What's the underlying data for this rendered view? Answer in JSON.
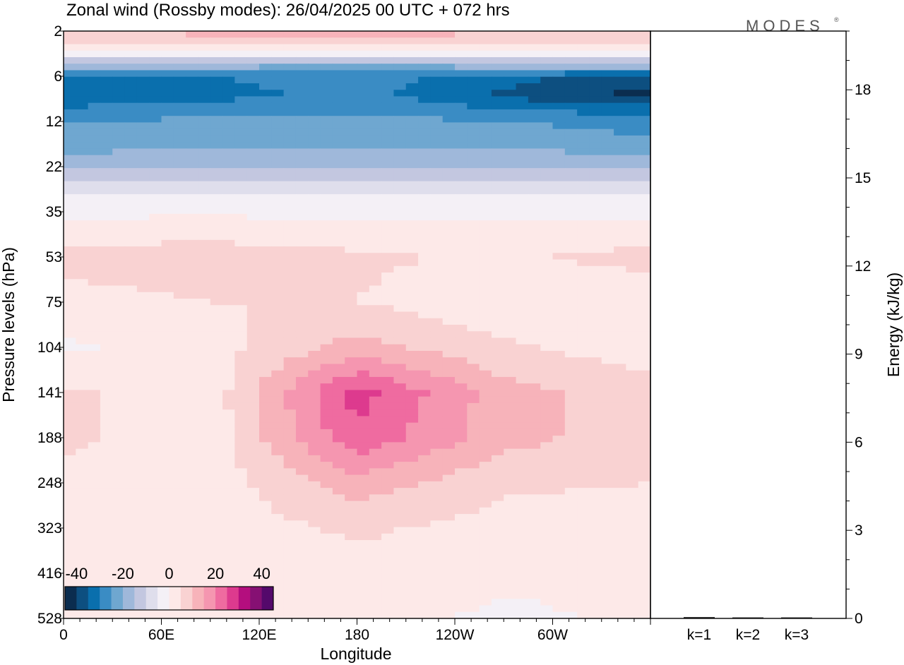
{
  "title": "Zonal wind (Rossby modes):  26/04/2025  00 UTC  + 072 hrs",
  "brand": {
    "name": "MODES",
    "mark": "®"
  },
  "chart_data": [
    {
      "type": "heatmap",
      "title": "Zonal wind (Rossby modes):  26/04/2025  00 UTC  + 072 hrs",
      "xlabel": "Longitude",
      "ylabel": "Pressure levels (hPa)",
      "x_ticks": [
        "0",
        "60E",
        "120E",
        "180",
        "120W",
        "60W"
      ],
      "x_tick_degrees": [
        0,
        60,
        120,
        180,
        240,
        300
      ],
      "xlim": [
        0,
        360
      ],
      "y_ticks": [
        2,
        6,
        12,
        22,
        35,
        53,
        75,
        104,
        141,
        188,
        248,
        323,
        416,
        528
      ],
      "y_scale": "model levels (top = 2 hPa, bottom = 528 hPa)",
      "colorbar": {
        "tick_labels": [
          "-40",
          "-20",
          "0",
          "20",
          "40"
        ],
        "tick_values": [
          -40,
          -20,
          0,
          20,
          40
        ],
        "range": [
          -45,
          45
        ],
        "levels": [
          -45,
          -40,
          -35,
          -30,
          -25,
          -20,
          -15,
          -10,
          -5,
          0,
          5,
          10,
          15,
          20,
          25,
          30,
          35,
          40,
          45
        ],
        "colors": [
          "#0b2d4f",
          "#0d4f80",
          "#0a6fad",
          "#3a8cc4",
          "#6fa7d0",
          "#9fb8da",
          "#c3c7e0",
          "#dfdeec",
          "#f4f0f6",
          "#fde9e8",
          "#f9d2d2",
          "#f7b3ba",
          "#f596b0",
          "#ef6ba0",
          "#dd3a8e",
          "#b40e7e",
          "#861073",
          "#54096b"
        ]
      },
      "bands": [
        {
          "level": 2,
          "values": [
            10,
            12,
            15,
            10,
            8
          ]
        },
        {
          "level": 3,
          "values": [
            3,
            3,
            3,
            3,
            3
          ]
        },
        {
          "level": 4,
          "values": [
            -9,
            -10,
            -11,
            -10,
            -9
          ]
        },
        {
          "level": 5,
          "values": [
            -21,
            -22,
            -23,
            -22,
            -21
          ]
        },
        {
          "level": 6,
          "values": [
            -34,
            -30,
            -27,
            -33,
            -38
          ]
        },
        {
          "level": 8,
          "values": [
            -35,
            -32,
            -28,
            -36,
            -42
          ]
        },
        {
          "level": 10,
          "values": [
            -29,
            -27,
            -26,
            -30,
            -33
          ]
        },
        {
          "level": 12,
          "values": [
            -25,
            -24,
            -23,
            -25,
            -27
          ]
        },
        {
          "level": 16,
          "values": [
            -23,
            -22,
            -21,
            -22,
            -24
          ]
        },
        {
          "level": 22,
          "values": [
            -16,
            -15,
            -15,
            -15,
            -16
          ]
        },
        {
          "level": 28,
          "values": [
            -7,
            -7,
            -7,
            -7,
            -7
          ]
        },
        {
          "level": 35,
          "values": [
            -1,
            -1,
            -1,
            -1,
            -1
          ]
        },
        {
          "level": 53,
          "values": [
            7,
            8,
            6,
            4,
            7
          ]
        },
        {
          "level": 75,
          "values": [
            3,
            5,
            5,
            1,
            1
          ]
        },
        {
          "level": 104,
          "values": [
            -1,
            3,
            12,
            6,
            2
          ]
        },
        {
          "level": 141,
          "values": [
            6,
            2,
            27,
            12,
            7
          ]
        },
        {
          "level": 188,
          "values": [
            6,
            2,
            24,
            12,
            7
          ]
        },
        {
          "level": 248,
          "values": [
            4,
            2,
            13,
            6,
            5
          ]
        },
        {
          "level": 323,
          "values": [
            2,
            2,
            6,
            3,
            2
          ]
        },
        {
          "level": 416,
          "values": [
            1,
            1,
            3,
            1,
            1
          ]
        },
        {
          "level": 528,
          "values": [
            1,
            1,
            2,
            -1,
            1
          ]
        }
      ]
    },
    {
      "type": "bar",
      "categories": [
        "k=1",
        "k=2",
        "k=3"
      ],
      "values": [
        0.02,
        0.01,
        0.01
      ],
      "ylabel": "Energy (kJ/kg)",
      "y_ticks": [
        0,
        3,
        6,
        9,
        12,
        15,
        18
      ],
      "ylim": [
        0,
        20
      ]
    }
  ]
}
